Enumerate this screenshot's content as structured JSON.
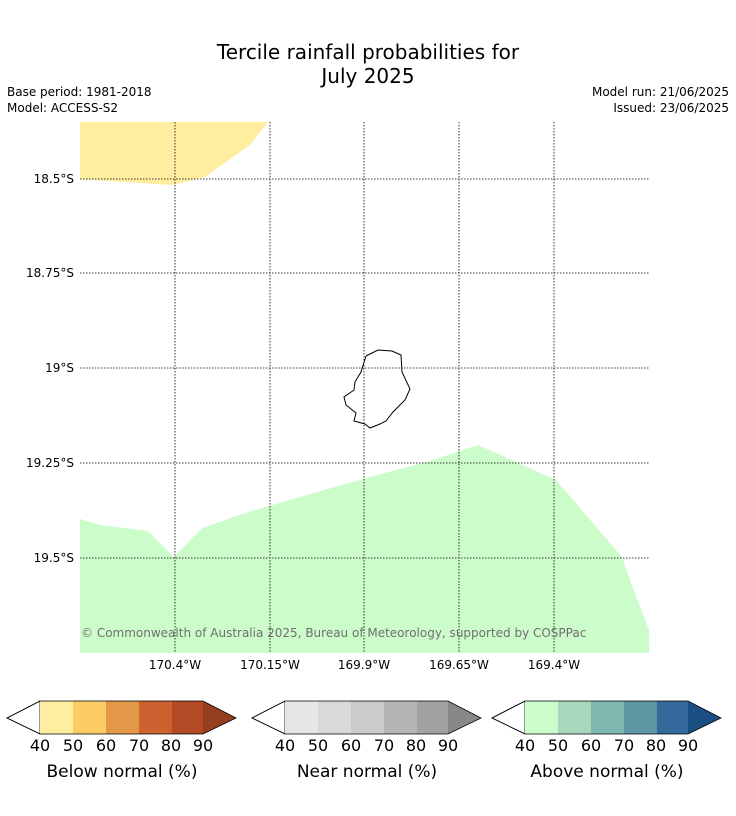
{
  "header": {
    "title_line1": "Tercile rainfall probabilities for",
    "title_line2": "July 2025",
    "base_period": "Base period: 1981-2018",
    "model": "Model: ACCESS-S2",
    "model_run": "Model run: 21/06/2025",
    "issued": "Issued: 23/06/2025"
  },
  "map": {
    "lat_labels": [
      "18.5°S",
      "18.75°S",
      "19°S",
      "19.25°S",
      "19.5°S"
    ],
    "lon_labels": [
      "170.4°W",
      "170.15°W",
      "169.9°W",
      "169.65°W",
      "169.4°W"
    ],
    "copyright": "© Commonwealth of Australia 2025, Bureau of Meteorology, supported by COSPPac",
    "colors": {
      "below_40_50": "#ffeda0",
      "above_40_50": "#ccfcca",
      "island_outline": "#000000",
      "grid": "#000000"
    }
  },
  "colorbars": [
    {
      "title": "Below normal (%)",
      "ticks": [
        "40",
        "50",
        "60",
        "70",
        "80",
        "90"
      ],
      "colors": [
        "#ffeda0",
        "#fecc66",
        "#e39847",
        "#cd6130",
        "#b24a26",
        "#963f1f"
      ]
    },
    {
      "title": "Near normal (%)",
      "ticks": [
        "40",
        "50",
        "60",
        "70",
        "80",
        "90"
      ],
      "colors": [
        "#e6e6e6",
        "#d9d9d9",
        "#cbcbcb",
        "#b5b5b5",
        "#a2a2a2",
        "#888888"
      ]
    },
    {
      "title": "Above normal (%)",
      "ticks": [
        "40",
        "50",
        "60",
        "70",
        "80",
        "90"
      ],
      "colors": [
        "#ccfcca",
        "#a8d8bb",
        "#7fb6b0",
        "#5e95a2",
        "#336a9b",
        "#1b4e82"
      ]
    }
  ]
}
